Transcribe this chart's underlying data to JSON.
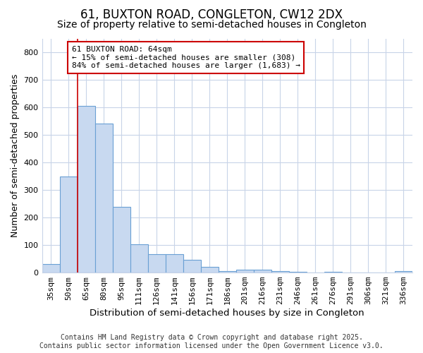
{
  "title1": "61, BUXTON ROAD, CONGLETON, CW12 2DX",
  "title2": "Size of property relative to semi-detached houses in Congleton",
  "xlabel": "Distribution of semi-detached houses by size in Congleton",
  "ylabel": "Number of semi-detached properties",
  "categories": [
    "35sqm",
    "50sqm",
    "65sqm",
    "80sqm",
    "95sqm",
    "111sqm",
    "126sqm",
    "141sqm",
    "156sqm",
    "171sqm",
    "186sqm",
    "201sqm",
    "216sqm",
    "231sqm",
    "246sqm",
    "261sqm",
    "276sqm",
    "291sqm",
    "306sqm",
    "321sqm",
    "336sqm"
  ],
  "values": [
    30,
    350,
    607,
    542,
    240,
    103,
    68,
    68,
    47,
    20,
    5,
    10,
    10,
    5,
    2,
    0,
    2,
    0,
    0,
    0,
    5
  ],
  "bar_color": "#c8d9f0",
  "bar_edge_color": "#6aa0d4",
  "vline_x_index": 2,
  "vline_color": "#cc0000",
  "annotation_text": "61 BUXTON ROAD: 64sqm\n← 15% of semi-detached houses are smaller (308)\n84% of semi-detached houses are larger (1,683) →",
  "annotation_box_color": "#ffffff",
  "annotation_box_edge_color": "#cc0000",
  "ylim": [
    0,
    850
  ],
  "yticks": [
    0,
    100,
    200,
    300,
    400,
    500,
    600,
    700,
    800
  ],
  "bg_color": "#ffffff",
  "plot_bg_color": "#ffffff",
  "grid_color": "#c8d4e8",
  "footer_line1": "Contains HM Land Registry data © Crown copyright and database right 2025.",
  "footer_line2": "Contains public sector information licensed under the Open Government Licence v3.0.",
  "title1_fontsize": 12,
  "title2_fontsize": 10,
  "xlabel_fontsize": 9.5,
  "ylabel_fontsize": 9,
  "tick_fontsize": 8,
  "footer_fontsize": 7
}
